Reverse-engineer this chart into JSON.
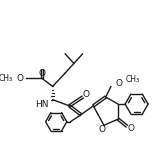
{
  "bg_color": "#ffffff",
  "line_color": "#1a1a1a",
  "lw": 1.0,
  "figsize": [
    1.64,
    1.49
  ],
  "dpi": 100,
  "xlim": [
    0,
    164
  ],
  "ylim": [
    0,
    149
  ]
}
